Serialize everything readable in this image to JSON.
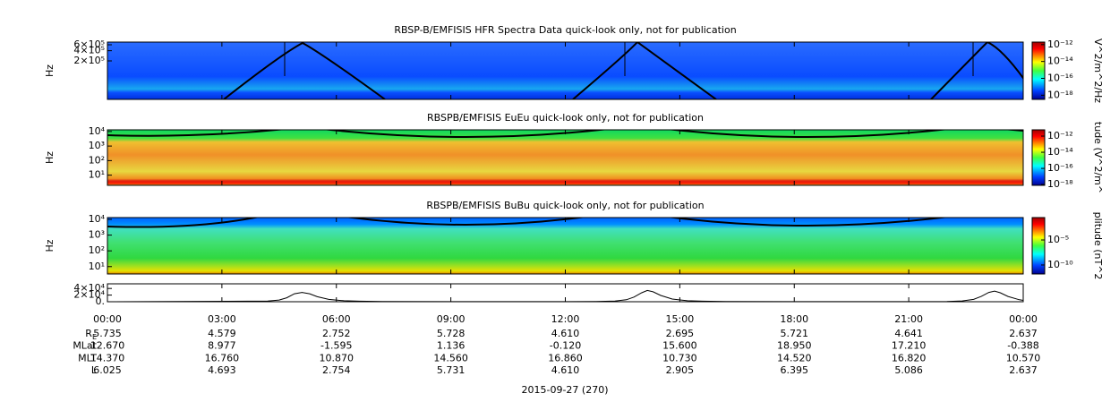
{
  "chart_data": [
    {
      "type": "spectrogram",
      "title": "RBSP-B/EMFISIS  HFR Spectra Data quick-look only, not for publication",
      "ylabel": "Hz",
      "log": true,
      "ylim": [
        14500,
        720000
      ],
      "yticks": [
        {
          "value": 600000,
          "label": "6×10⁵"
        },
        {
          "value": 400000,
          "label": "4×10⁵"
        },
        {
          "value": 200000,
          "label": "2×10⁵"
        }
      ],
      "colorbar": {
        "label": "V^2/m^2/Hz",
        "lim": [
          3.2e-19,
          2e-12
        ],
        "ticks": [
          {
            "value": 1e-12,
            "label": "10⁻¹²"
          },
          {
            "value": 1e-14,
            "label": "10⁻¹⁴"
          },
          {
            "value": 1e-16,
            "label": "10⁻¹⁶"
          },
          {
            "value": 1e-18,
            "label": "10⁻¹⁸"
          }
        ]
      }
    },
    {
      "type": "spectrogram",
      "title": "RBSPB/EMFISIS  EuEu quick-look only, not for publication",
      "ylabel": "Hz",
      "log": true,
      "ylim": [
        2,
        13000
      ],
      "yticks": [
        {
          "value": 10000,
          "label": "10⁴"
        },
        {
          "value": 1000,
          "label": "10³"
        },
        {
          "value": 100,
          "label": "10²"
        },
        {
          "value": 10,
          "label": "10¹"
        }
      ],
      "colorbar": {
        "label": "tude (V^2/m^",
        "lim": [
          8e-19,
          6e-12
        ],
        "ticks": [
          {
            "value": 1e-12,
            "label": "10⁻¹²"
          },
          {
            "value": 1e-14,
            "label": "10⁻¹⁴"
          },
          {
            "value": 1e-16,
            "label": "10⁻¹⁶"
          },
          {
            "value": 1e-18,
            "label": "10⁻¹⁸"
          }
        ]
      }
    },
    {
      "type": "spectrogram",
      "title": "RBSPB/EMFISIS  BuBu quick-look only, not for publication",
      "ylabel": "Hz",
      "log": true,
      "ylim": [
        3.4,
        13000
      ],
      "yticks": [
        {
          "value": 10000,
          "label": "10⁴"
        },
        {
          "value": 1000,
          "label": "10³"
        },
        {
          "value": 100,
          "label": "10²"
        },
        {
          "value": 10,
          "label": "10¹"
        }
      ],
      "colorbar": {
        "label": "plitude (nT^2",
        "lim": [
          1.6e-12,
          0.3
        ],
        "ticks": [
          {
            "value": 1e-05,
            "label": "10⁻⁵"
          },
          {
            "value": 1e-10,
            "label": "10⁻¹⁰"
          }
        ]
      }
    },
    {
      "type": "line",
      "color": "#000000",
      "log": false,
      "xlim": [
        0,
        24
      ],
      "xticks": [
        {
          "value": 0,
          "label": "00:00"
        },
        {
          "value": 3,
          "label": "03:00"
        },
        {
          "value": 6,
          "label": "06:00"
        },
        {
          "value": 9,
          "label": "09:00"
        },
        {
          "value": 12,
          "label": "12:00"
        },
        {
          "value": 15,
          "label": "15:00"
        },
        {
          "value": 18,
          "label": "18:00"
        },
        {
          "value": 21,
          "label": "21:00"
        },
        {
          "value": 24,
          "label": "00:00"
        }
      ],
      "ylim": [
        0,
        54000
      ],
      "yticks": [
        {
          "value": 40000,
          "label": "4×10⁴"
        },
        {
          "value": 20000,
          "label": "2×10⁴"
        },
        {
          "value": 0,
          "label": "0."
        }
      ],
      "x": [
        0,
        4.2,
        4.5,
        4.7,
        4.9,
        5.1,
        5.3,
        5.5,
        5.8,
        6.2,
        6.6,
        7.2,
        9,
        12,
        12.8,
        13.3,
        13.6,
        13.8,
        14.0,
        14.15,
        14.3,
        14.5,
        14.8,
        15.2,
        15.6,
        16.2,
        18,
        21,
        22,
        22.4,
        22.7,
        22.9,
        23.1,
        23.25,
        23.4,
        23.6,
        23.9,
        24
      ],
      "values": [
        0,
        2000,
        5000,
        12000,
        24000,
        28000,
        24000,
        15000,
        7000,
        3000,
        1500,
        800,
        400,
        400,
        800,
        2000,
        6000,
        14000,
        27000,
        34000,
        30000,
        19000,
        8000,
        3000,
        1500,
        800,
        400,
        400,
        800,
        2500,
        7000,
        16000,
        28000,
        32000,
        27000,
        16000,
        6000,
        4000
      ]
    }
  ],
  "ephemeris": {
    "rows": [
      {
        "label": "R",
        "sub": "E",
        "values": [
          "5.735",
          "4.579",
          "2.752",
          "5.728",
          "4.610",
          "2.695",
          "5.721",
          "4.641",
          "2.637"
        ]
      },
      {
        "label": "MLat",
        "values": [
          "12.670",
          "8.977",
          "-1.595",
          "1.136",
          "-0.120",
          "15.600",
          "18.950",
          "17.210",
          "-0.388"
        ]
      },
      {
        "label": "MLT",
        "values": [
          "14.370",
          "16.760",
          "10.870",
          "14.560",
          "16.860",
          "10.730",
          "14.520",
          "16.820",
          "10.570"
        ]
      },
      {
        "label": "L",
        "values": [
          "6.025",
          "4.693",
          "2.754",
          "5.731",
          "4.610",
          "2.905",
          "6.395",
          "5.086",
          "2.637"
        ]
      }
    ]
  },
  "date": "2015-09-27 (270)"
}
